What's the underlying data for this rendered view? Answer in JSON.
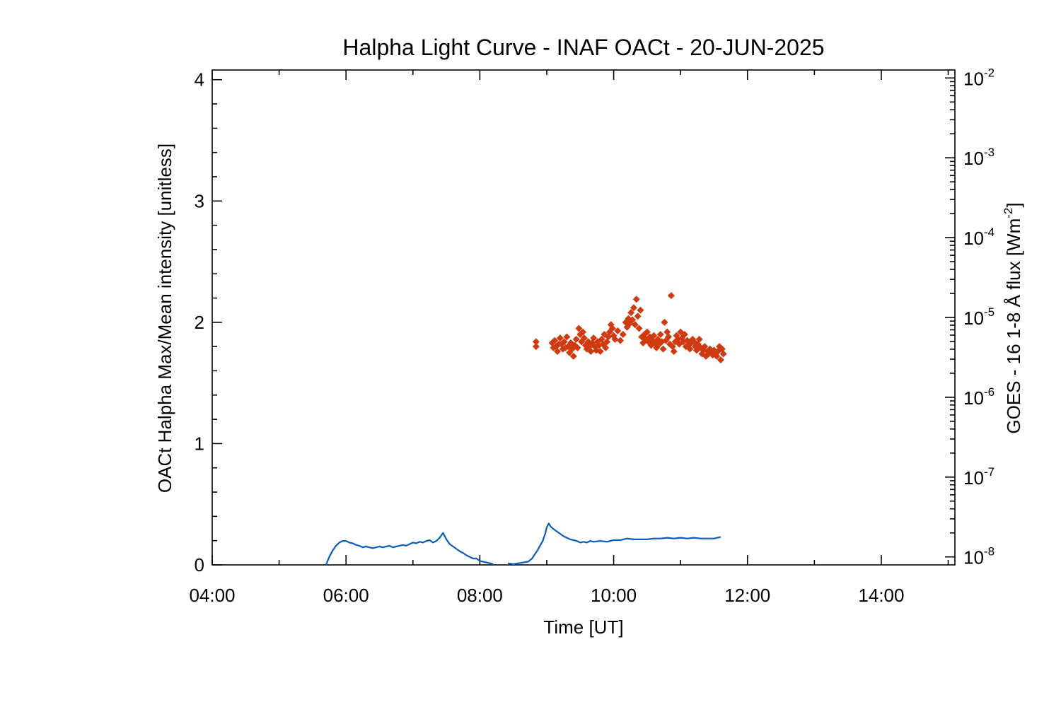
{
  "chart_data": {
    "type": "scatter",
    "title": "Halpha Light Curve - INAF OACt - 20-JUN-2025",
    "xlabel": "Time [UT]",
    "ylabel": "OACt Halpha Max/Mean intensity [unitless]",
    "y2label": "GOES - 16 1-8 Å flux [Wm",
    "y2label_sup": "-2",
    "y2label_end": "]",
    "x_unit": "hours UT",
    "xlim": [
      4.0,
      15.1
    ],
    "ylim": [
      0,
      4.08
    ],
    "y2lim_log10": [
      -8.1,
      -1.9
    ],
    "y2scale": "log",
    "grid": false,
    "xticks": [
      {
        "v": 4,
        "label": "04:00"
      },
      {
        "v": 6,
        "label": "06:00"
      },
      {
        "v": 8,
        "label": "08:00"
      },
      {
        "v": 10,
        "label": "10:00"
      },
      {
        "v": 12,
        "label": "12:00"
      },
      {
        "v": 14,
        "label": "14:00"
      }
    ],
    "yticks": [
      {
        "v": 0,
        "label": "0"
      },
      {
        "v": 1,
        "label": "1"
      },
      {
        "v": 2,
        "label": "2"
      },
      {
        "v": 3,
        "label": "3"
      },
      {
        "v": 4,
        "label": "4"
      }
    ],
    "y2ticks": [
      {
        "exp": -8,
        "base": "10",
        "sup": "-8"
      },
      {
        "exp": -7,
        "base": "10",
        "sup": "-7"
      },
      {
        "exp": -6,
        "base": "10",
        "sup": "-6"
      },
      {
        "exp": -5,
        "base": "10",
        "sup": "-5"
      },
      {
        "exp": -4,
        "base": "10",
        "sup": "-4"
      },
      {
        "exp": -3,
        "base": "10",
        "sup": "-3"
      },
      {
        "exp": -2,
        "base": "10",
        "sup": "-2"
      }
    ],
    "series": [
      {
        "axis": "right",
        "style": "line",
        "color": "#0b5cbe",
        "x": [
          5.7,
          5.75,
          5.8,
          5.85,
          5.9,
          5.95,
          6.0,
          6.05,
          6.1,
          6.15,
          6.2,
          6.25,
          6.3,
          6.35,
          6.4,
          6.45,
          6.5,
          6.55,
          6.6,
          6.65,
          6.7,
          6.75,
          6.8,
          6.85,
          6.9,
          6.95,
          7.0,
          7.05,
          7.1,
          7.15,
          7.2,
          7.25,
          7.3,
          7.35,
          7.4,
          7.45,
          7.5,
          7.55,
          7.6,
          7.65,
          7.7,
          7.75,
          7.8,
          7.85,
          7.9,
          7.95,
          8.0,
          8.05,
          8.1,
          8.15,
          8.2
        ],
        "y": [
          -8.1,
          -8.0,
          -7.92,
          -7.86,
          -7.82,
          -7.8,
          -7.8,
          -7.82,
          -7.83,
          -7.85,
          -7.86,
          -7.88,
          -7.87,
          -7.88,
          -7.89,
          -7.88,
          -7.87,
          -7.88,
          -7.87,
          -7.86,
          -7.88,
          -7.87,
          -7.86,
          -7.85,
          -7.86,
          -7.84,
          -7.82,
          -7.83,
          -7.81,
          -7.82,
          -7.8,
          -7.79,
          -7.82,
          -7.8,
          -7.76,
          -7.7,
          -7.78,
          -7.84,
          -7.87,
          -7.9,
          -7.93,
          -7.95,
          -7.98,
          -8.0,
          -8.02,
          -8.02,
          -8.05,
          -8.06,
          -8.07,
          -8.08,
          -8.09
        ]
      },
      {
        "axis": "right",
        "style": "line",
        "color": "#0b5cbe",
        "x": [
          8.42,
          8.5,
          8.58,
          8.65,
          8.72,
          8.78,
          8.82,
          8.86,
          8.9,
          8.94,
          8.98,
          9.0,
          9.03,
          9.06,
          9.1,
          9.15,
          9.2,
          9.25,
          9.3,
          9.35,
          9.4,
          9.45,
          9.5,
          9.55,
          9.6,
          9.65,
          9.7,
          9.8,
          9.9,
          10.0,
          10.1,
          10.2,
          10.3,
          10.4,
          10.5,
          10.6,
          10.7,
          10.8,
          10.9,
          11.0,
          11.1,
          11.2,
          11.3,
          11.4,
          11.5,
          11.6
        ],
        "y": [
          -8.08,
          -8.09,
          -8.08,
          -8.07,
          -8.06,
          -8.02,
          -7.97,
          -7.92,
          -7.86,
          -7.8,
          -7.7,
          -7.63,
          -7.58,
          -7.62,
          -7.65,
          -7.68,
          -7.71,
          -7.74,
          -7.76,
          -7.78,
          -7.79,
          -7.8,
          -7.82,
          -7.81,
          -7.82,
          -7.8,
          -7.81,
          -7.8,
          -7.81,
          -7.79,
          -7.79,
          -7.77,
          -7.78,
          -7.78,
          -7.78,
          -7.77,
          -7.77,
          -7.76,
          -7.77,
          -7.76,
          -7.77,
          -7.76,
          -7.77,
          -7.77,
          -7.77,
          -7.75
        ]
      },
      {
        "axis": "left",
        "style": "diamond",
        "color": "#d03a10",
        "x": [
          8.84,
          8.84,
          9.08,
          9.1,
          9.12,
          9.14,
          9.16,
          9.18,
          9.2,
          9.22,
          9.24,
          9.26,
          9.28,
          9.3,
          9.32,
          9.34,
          9.36,
          9.38,
          9.4,
          9.42,
          9.44,
          9.46,
          9.48,
          9.5,
          9.52,
          9.54,
          9.56,
          9.58,
          9.6,
          9.62,
          9.64,
          9.66,
          9.68,
          9.7,
          9.72,
          9.74,
          9.76,
          9.78,
          9.8,
          9.82,
          9.84,
          9.86,
          9.88,
          9.9,
          9.92,
          9.94,
          9.96,
          9.98,
          10.0,
          10.02,
          10.06,
          10.1,
          10.14,
          10.18,
          10.2,
          10.22,
          10.24,
          10.26,
          10.28,
          10.3,
          10.32,
          10.34,
          10.36,
          10.38,
          10.4,
          10.42,
          10.44,
          10.46,
          10.48,
          10.5,
          10.52,
          10.54,
          10.56,
          10.58,
          10.6,
          10.62,
          10.64,
          10.66,
          10.68,
          10.7,
          10.72,
          10.74,
          10.76,
          10.78,
          10.8,
          10.82,
          10.84,
          10.86,
          10.88,
          10.9,
          10.92,
          10.94,
          10.96,
          10.98,
          11.0,
          11.02,
          11.04,
          11.06,
          11.08,
          11.1,
          11.12,
          11.14,
          11.16,
          11.18,
          11.2,
          11.22,
          11.24,
          11.26,
          11.28,
          11.3,
          11.32,
          11.34,
          11.36,
          11.38,
          11.4,
          11.42,
          11.44,
          11.46,
          11.48,
          11.5,
          11.52,
          11.54,
          11.56,
          11.58,
          11.6,
          11.62,
          11.64
        ],
        "y": [
          1.84,
          1.8,
          1.83,
          1.79,
          1.85,
          1.8,
          1.76,
          1.82,
          1.87,
          1.82,
          1.78,
          1.84,
          1.79,
          1.88,
          1.8,
          1.75,
          1.83,
          1.78,
          1.72,
          1.81,
          1.86,
          1.79,
          1.95,
          1.9,
          1.84,
          1.92,
          1.87,
          1.81,
          1.78,
          1.84,
          1.8,
          1.76,
          1.83,
          1.87,
          1.8,
          1.77,
          1.84,
          1.81,
          1.76,
          1.86,
          1.82,
          1.9,
          1.79,
          1.84,
          1.88,
          1.92,
          1.98,
          1.95,
          1.89,
          1.86,
          1.93,
          1.85,
          1.9,
          2.0,
          1.96,
          2.03,
          1.99,
          2.08,
          2.02,
          2.12,
          1.98,
          2.19,
          2.05,
          1.95,
          2.1,
          1.88,
          1.83,
          1.9,
          1.86,
          1.92,
          1.84,
          1.88,
          1.81,
          1.85,
          1.89,
          1.83,
          1.79,
          1.86,
          1.82,
          1.9,
          1.84,
          1.78,
          2.0,
          1.85,
          1.92,
          1.88,
          1.82,
          2.22,
          1.8,
          1.76,
          1.84,
          1.89,
          1.86,
          1.82,
          1.92,
          1.87,
          1.84,
          1.9,
          1.8,
          1.85,
          1.81,
          1.78,
          1.83,
          1.86,
          1.84,
          1.8,
          1.77,
          1.82,
          1.86,
          1.79,
          1.74,
          1.77,
          1.8,
          1.72,
          1.76,
          1.74,
          1.78,
          1.75,
          1.73,
          1.77,
          1.75,
          1.72,
          1.76,
          1.8,
          1.69,
          1.78,
          1.74
        ]
      }
    ]
  }
}
